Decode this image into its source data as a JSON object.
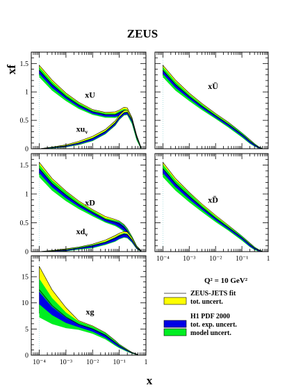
{
  "title": "ZEUS",
  "ylabel": "xf",
  "xlabel": "x",
  "q2_label": "Q² = 10 GeV²",
  "colors": {
    "zeus_total": "#ffff00",
    "h1_exp": "#0000e6",
    "h1_model": "#00ee22",
    "fit_line": "#000000"
  },
  "legend": [
    {
      "label": "ZEUS-JETS fit",
      "kind": "line",
      "color_key": "fit_line"
    },
    {
      "label": "tot. uncert.",
      "kind": "box",
      "color_key": "zeus_total"
    },
    {
      "label": "H1 PDF 2000",
      "kind": "title"
    },
    {
      "label": "tot. exp. uncert.",
      "kind": "box",
      "color_key": "h1_exp"
    },
    {
      "label": "model uncert.",
      "kind": "box",
      "color_key": "h1_model"
    }
  ],
  "x_tick_labels": [
    "10⁻⁴",
    "10⁻³",
    "10⁻²",
    "10⁻¹",
    "1"
  ],
  "chart_data": [
    {
      "type": "area",
      "panel": "top-left",
      "xscale": "log",
      "xlim": [
        5e-05,
        1
      ],
      "ylim": [
        0,
        1.7
      ],
      "y_ticks": [
        0,
        0.5,
        1,
        1.5
      ],
      "y_tick_labels": [
        "0",
        "0.5",
        "1",
        "1.5"
      ],
      "x_tick_labels": [],
      "curves": [
        {
          "label": "xU",
          "x": [
            0.0001,
            0.0003,
            0.001,
            0.003,
            0.01,
            0.03,
            0.07,
            0.1,
            0.15,
            0.2,
            0.3,
            0.45,
            0.65
          ],
          "y": [
            1.38,
            1.13,
            0.92,
            0.77,
            0.65,
            0.6,
            0.6,
            0.63,
            0.67,
            0.66,
            0.5,
            0.2,
            0.02
          ],
          "zeus_band": [
            0.09,
            0.08,
            0.06,
            0.05,
            0.04,
            0.04,
            0.05,
            0.05,
            0.06,
            0.06,
            0.05,
            0.04,
            0.01
          ],
          "h1_exp": [
            0.03,
            0.03,
            0.02,
            0.02,
            0.02,
            0.02,
            0.02,
            0.03,
            0.03,
            0.03,
            0.03,
            0.02,
            0.01
          ],
          "h1_model": [
            0.06,
            0.05,
            0.04,
            0.03,
            0.02,
            0.02,
            0.02,
            0.02,
            0.02,
            0.02,
            0.02,
            0.02,
            0.01
          ],
          "label_at": [
            0.008,
            0.9
          ]
        },
        {
          "label": "xu_v",
          "x": [
            0.0001,
            0.0003,
            0.001,
            0.003,
            0.01,
            0.03,
            0.07,
            0.1,
            0.15,
            0.2,
            0.3,
            0.45,
            0.65
          ],
          "y": [
            0.0,
            0.02,
            0.05,
            0.1,
            0.18,
            0.3,
            0.45,
            0.55,
            0.63,
            0.64,
            0.5,
            0.2,
            0.02
          ],
          "zeus_band": [
            0.0,
            0.01,
            0.02,
            0.03,
            0.04,
            0.04,
            0.04,
            0.04,
            0.04,
            0.04,
            0.03,
            0.02,
            0.01
          ],
          "h1_exp": [
            0.0,
            0.005,
            0.01,
            0.01,
            0.02,
            0.02,
            0.02,
            0.02,
            0.02,
            0.02,
            0.02,
            0.01,
            0.005
          ],
          "h1_model": [
            0.0,
            0.005,
            0.005,
            0.01,
            0.01,
            0.01,
            0.01,
            0.01,
            0.01,
            0.01,
            0.01,
            0.01,
            0.005
          ],
          "label_at": [
            0.004,
            0.3
          ]
        }
      ]
    },
    {
      "type": "area",
      "panel": "top-right",
      "xscale": "log",
      "xlim": [
        5e-05,
        1
      ],
      "ylim": [
        0,
        1.7
      ],
      "y_ticks": [
        0,
        0.5,
        1,
        1.5
      ],
      "y_tick_labels": [],
      "x_tick_labels": [],
      "curves": [
        {
          "label": "xŪ",
          "x": [
            0.0001,
            0.0003,
            0.001,
            0.003,
            0.01,
            0.03,
            0.1,
            0.2,
            0.3,
            0.45,
            0.6
          ],
          "y": [
            1.38,
            1.13,
            0.92,
            0.75,
            0.58,
            0.43,
            0.25,
            0.13,
            0.07,
            0.02,
            0.004
          ],
          "zeus_band": [
            0.09,
            0.08,
            0.06,
            0.05,
            0.04,
            0.04,
            0.03,
            0.03,
            0.02,
            0.01,
            0.003
          ],
          "h1_exp": [
            0.03,
            0.03,
            0.02,
            0.02,
            0.02,
            0.02,
            0.02,
            0.02,
            0.015,
            0.01,
            0.003
          ],
          "h1_model": [
            0.06,
            0.05,
            0.04,
            0.03,
            0.02,
            0.02,
            0.02,
            0.01,
            0.01,
            0.005,
            0.002
          ],
          "label_at": [
            0.008,
            1.05
          ]
        }
      ]
    },
    {
      "type": "area",
      "panel": "middle-left",
      "xscale": "log",
      "xlim": [
        5e-05,
        1
      ],
      "ylim": [
        0,
        1.7
      ],
      "y_ticks": [
        0,
        0.5,
        1,
        1.5
      ],
      "y_tick_labels": [
        "0",
        "0.5",
        "1",
        "1.5"
      ],
      "x_tick_labels": [],
      "curves": [
        {
          "label": "xD",
          "x": [
            0.0001,
            0.0003,
            0.001,
            0.003,
            0.01,
            0.03,
            0.07,
            0.1,
            0.15,
            0.2,
            0.3,
            0.45,
            0.65
          ],
          "y": [
            1.44,
            1.18,
            0.98,
            0.82,
            0.68,
            0.56,
            0.51,
            0.48,
            0.42,
            0.35,
            0.22,
            0.08,
            0.01
          ],
          "zeus_band": [
            0.11,
            0.09,
            0.07,
            0.06,
            0.05,
            0.05,
            0.05,
            0.05,
            0.05,
            0.05,
            0.04,
            0.02,
            0.01
          ],
          "h1_exp": [
            0.04,
            0.03,
            0.03,
            0.02,
            0.02,
            0.02,
            0.03,
            0.04,
            0.04,
            0.04,
            0.03,
            0.02,
            0.005
          ],
          "h1_model": [
            0.07,
            0.06,
            0.05,
            0.04,
            0.03,
            0.02,
            0.02,
            0.02,
            0.02,
            0.02,
            0.02,
            0.01,
            0.005
          ],
          "label_at": [
            0.008,
            0.8
          ]
        },
        {
          "label": "xd_v",
          "x": [
            0.0001,
            0.0003,
            0.001,
            0.003,
            0.01,
            0.03,
            0.07,
            0.1,
            0.15,
            0.2,
            0.3,
            0.45,
            0.65
          ],
          "y": [
            0.0,
            0.01,
            0.03,
            0.06,
            0.1,
            0.16,
            0.23,
            0.27,
            0.3,
            0.29,
            0.2,
            0.07,
            0.01
          ],
          "zeus_band": [
            0.0,
            0.01,
            0.02,
            0.02,
            0.03,
            0.04,
            0.05,
            0.05,
            0.05,
            0.05,
            0.04,
            0.02,
            0.005
          ],
          "h1_exp": [
            0.0,
            0.005,
            0.01,
            0.01,
            0.02,
            0.02,
            0.03,
            0.03,
            0.03,
            0.03,
            0.02,
            0.01,
            0.003
          ],
          "h1_model": [
            0.0,
            0.005,
            0.005,
            0.01,
            0.01,
            0.01,
            0.01,
            0.01,
            0.01,
            0.01,
            0.01,
            0.005,
            0.002
          ],
          "label_at": [
            0.004,
            0.3
          ]
        }
      ]
    },
    {
      "type": "area",
      "panel": "middle-right",
      "xscale": "log",
      "xlim": [
        5e-05,
        1
      ],
      "ylim": [
        0,
        1.7
      ],
      "y_ticks": [
        0,
        0.5,
        1,
        1.5
      ],
      "y_tick_labels": [],
      "x_tick_labels": [
        "10⁻⁴",
        "10⁻³",
        "10⁻²",
        "10⁻¹",
        "1"
      ],
      "curves": [
        {
          "label": "xD̄",
          "x": [
            0.0001,
            0.0003,
            0.001,
            0.003,
            0.01,
            0.03,
            0.1,
            0.2,
            0.3,
            0.45,
            0.6
          ],
          "y": [
            1.44,
            1.18,
            0.96,
            0.77,
            0.58,
            0.42,
            0.24,
            0.12,
            0.06,
            0.02,
            0.004
          ],
          "zeus_band": [
            0.11,
            0.09,
            0.07,
            0.06,
            0.05,
            0.04,
            0.03,
            0.03,
            0.02,
            0.01,
            0.003
          ],
          "h1_exp": [
            0.04,
            0.03,
            0.03,
            0.02,
            0.02,
            0.02,
            0.02,
            0.02,
            0.015,
            0.01,
            0.003
          ],
          "h1_model": [
            0.07,
            0.06,
            0.05,
            0.04,
            0.03,
            0.02,
            0.02,
            0.01,
            0.01,
            0.005,
            0.002
          ],
          "label_at": [
            0.008,
            0.85
          ]
        }
      ]
    },
    {
      "type": "area",
      "panel": "bottom-left",
      "xscale": "log",
      "xlim": [
        5e-05,
        1
      ],
      "ylim": [
        0,
        19
      ],
      "y_ticks": [
        0,
        5,
        10,
        15
      ],
      "y_tick_labels": [
        "0",
        "5",
        "10",
        "15"
      ],
      "x_tick_labels": [
        "10⁻⁴",
        "10⁻³",
        "10⁻²",
        "10⁻¹",
        "1"
      ],
      "curves": [
        {
          "label": "xg",
          "x": [
            0.0001,
            0.0003,
            0.001,
            0.003,
            0.01,
            0.03,
            0.07,
            0.1,
            0.2,
            0.3,
            0.5
          ],
          "y": [
            12.5,
            9.5,
            7.3,
            5.9,
            5.0,
            3.8,
            2.4,
            1.8,
            0.9,
            0.45,
            0.1
          ],
          "zeus_band": [
            4.5,
            3.0,
            1.8,
            0.7,
            0.6,
            0.5,
            0.4,
            0.3,
            0.2,
            0.1,
            0.05
          ],
          "h1_exp": [
            1.2,
            0.8,
            0.5,
            0.3,
            0.3,
            0.3,
            0.25,
            0.2,
            0.1,
            0.05,
            0.02
          ],
          "h1_model": [
            2.5,
            1.7,
            1.0,
            0.5,
            0.4,
            0.3,
            0.2,
            0.15,
            0.1,
            0.05,
            0.02
          ],
          "label_at": [
            0.008,
            7.8
          ]
        }
      ]
    }
  ]
}
